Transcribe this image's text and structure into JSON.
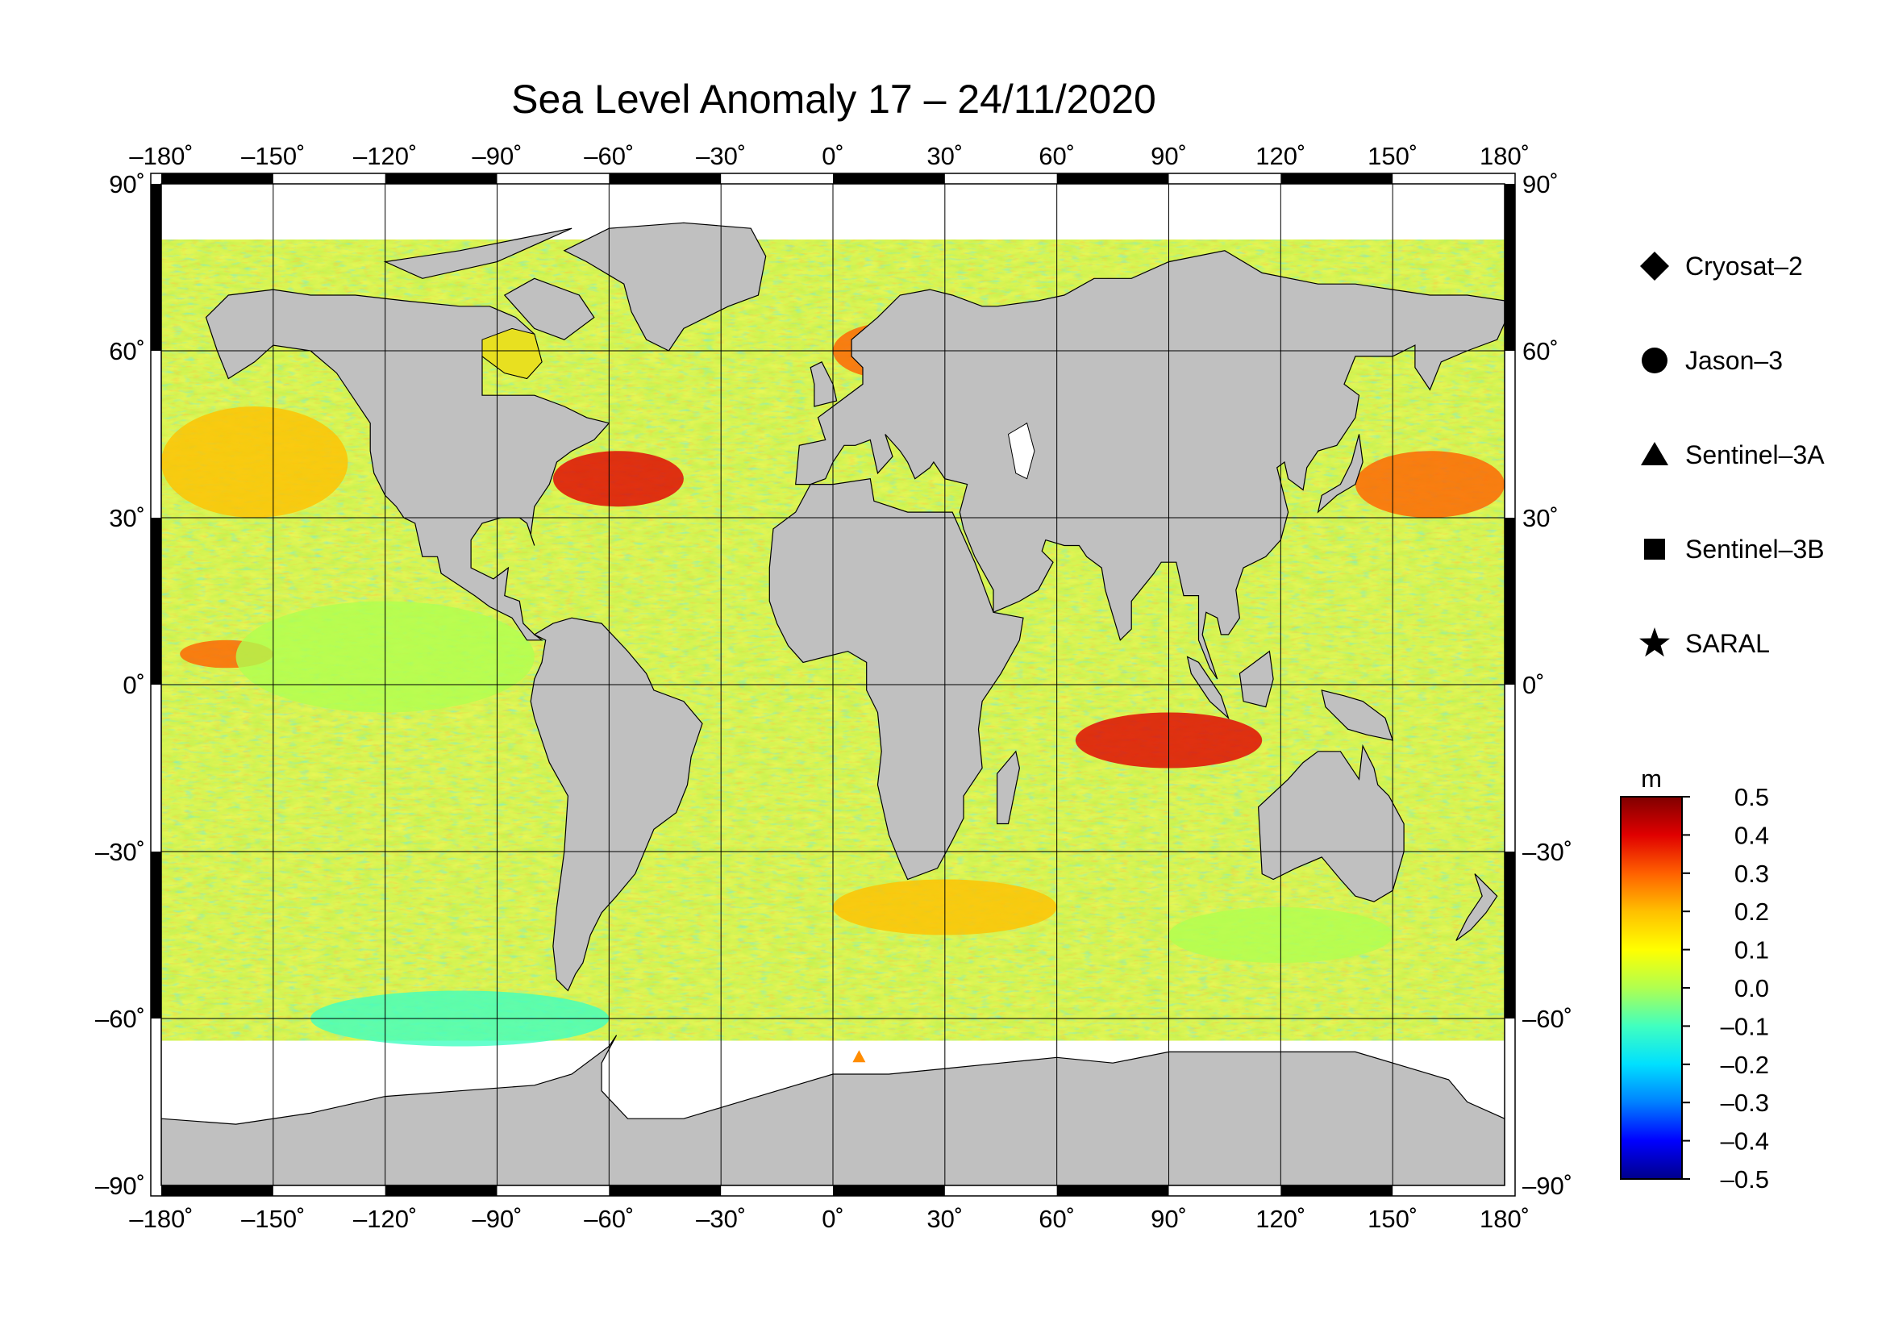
{
  "title": "Sea Level Anomaly 17 – 24/11/2020",
  "map": {
    "projection": "equirectangular",
    "lon_range": [
      -180,
      180
    ],
    "lat_range": [
      -90,
      90
    ],
    "lon_ticks": [
      "–180˚",
      "–150˚",
      "–120˚",
      "–90˚",
      "–60˚",
      "–30˚",
      "0˚",
      "30˚",
      "60˚",
      "90˚",
      "120˚",
      "150˚",
      "180˚"
    ],
    "lat_ticks_left": [
      "90˚",
      "60˚",
      "30˚",
      "0˚",
      "–30˚",
      "–60˚",
      "–90˚"
    ],
    "lat_ticks_right": [
      "90˚",
      "60˚",
      "30˚",
      "0˚",
      "–30˚",
      "–60˚",
      "–90˚"
    ],
    "grid": true,
    "colors": {
      "land": "#c0c0c0",
      "ice": "#ffffff",
      "grid": "#000000"
    }
  },
  "legend": {
    "placement": "right",
    "items": [
      {
        "label": "Cryosat–2",
        "marker": "diamond"
      },
      {
        "label": "Jason–3",
        "marker": "circle"
      },
      {
        "label": "Sentinel–3A",
        "marker": "triangle"
      },
      {
        "label": "Sentinel–3B",
        "marker": "square"
      },
      {
        "label": "SARAL",
        "marker": "star"
      }
    ]
  },
  "colorbar": {
    "unit": "m",
    "range": [
      -0.5,
      0.5
    ],
    "tick_labels": [
      "0.5",
      "0.4",
      "0.3",
      "0.2",
      "0.1",
      "0.0",
      "–0.1",
      "–0.2",
      "–0.3",
      "–0.4",
      "–0.5"
    ],
    "colors": [
      "#00008b",
      "#0000ff",
      "#0080ff",
      "#00e0ff",
      "#40ffc0",
      "#b0ff50",
      "#ffff00",
      "#ffc000",
      "#ff6000",
      "#e00000",
      "#800000"
    ]
  },
  "chart_data": {
    "type": "heatmap",
    "title": "Sea Level Anomaly 17 – 24/11/2020",
    "variable_unit": "m",
    "value_range": [
      -0.5,
      0.5
    ],
    "x_axis": "longitude",
    "y_axis": "latitude",
    "xlim": [
      -180,
      180
    ],
    "ylim": [
      -90,
      90
    ],
    "anomaly_regions": [
      {
        "lon": [
          65,
          115
        ],
        "lat": [
          -15,
          -5
        ],
        "sla": 0.35
      },
      {
        "lon": [
          -75,
          -40
        ],
        "lat": [
          32,
          42
        ],
        "sla": 0.35
      },
      {
        "lon": [
          140,
          180
        ],
        "lat": [
          30,
          42
        ],
        "sla": 0.25
      },
      {
        "lon": [
          -175,
          -150
        ],
        "lat": [
          3,
          8
        ],
        "sla": 0.25
      },
      {
        "lon": [
          0,
          30
        ],
        "lat": [
          55,
          65
        ],
        "sla": 0.3
      },
      {
        "lon": [
          -180,
          -130
        ],
        "lat": [
          30,
          50
        ],
        "sla": 0.2
      },
      {
        "lon": [
          -160,
          -80
        ],
        "lat": [
          -5,
          15
        ],
        "sla": -0.05
      },
      {
        "lon": [
          -140,
          -60
        ],
        "lat": [
          -65,
          -55
        ],
        "sla": -0.1
      },
      {
        "lon": [
          0,
          60
        ],
        "lat": [
          -45,
          -35
        ],
        "sla": 0.2
      },
      {
        "lon": [
          90,
          150
        ],
        "lat": [
          -50,
          -40
        ],
        "sla": -0.05
      }
    ],
    "markers": [
      {
        "satellite": "Sentinel–3A",
        "lon": 7,
        "lat": -67,
        "color": "#ff8c00"
      }
    ]
  }
}
